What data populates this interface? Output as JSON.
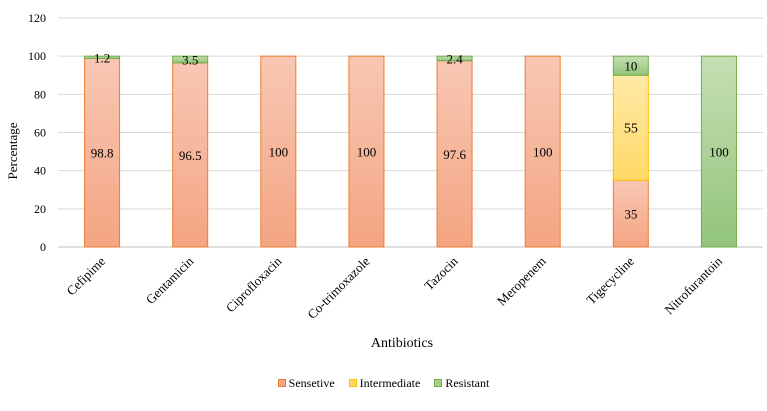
{
  "chart_data": {
    "type": "bar",
    "stacked": true,
    "xlabel": "Antibiotics",
    "ylabel": "Percentage",
    "ylim": [
      0,
      120
    ],
    "yticks": [
      0,
      20,
      40,
      60,
      80,
      100,
      120
    ],
    "grid": true,
    "legend_position": "bottom",
    "categories": [
      "Cefipime",
      "Gentamicin",
      "Ciprofloxacin",
      "Co-trimoxazole",
      "Tazocin",
      "Meropenem",
      "Tigecycline",
      "Nitrofurantoin"
    ],
    "series": [
      {
        "name": "Sensetive",
        "color": "#f4a582",
        "stroke": "#ed7d31",
        "values": [
          98.8,
          96.5,
          100,
          100,
          97.6,
          100,
          35,
          0
        ],
        "labels": [
          "98.8",
          "96.5",
          "100",
          "100",
          "97.6",
          "100",
          "35",
          ""
        ]
      },
      {
        "name": "Intermediate",
        "color": "#ffd966",
        "stroke": "#ffc000",
        "values": [
          0,
          0,
          0,
          0,
          0,
          0,
          55,
          0
        ],
        "labels": [
          "",
          "",
          "",
          "",
          "",
          "",
          "55",
          ""
        ]
      },
      {
        "name": "Resistant",
        "color": "#a9d18e",
        "stroke": "#70ad47",
        "values": [
          1.2,
          3.5,
          0,
          0,
          2.4,
          0,
          10,
          100
        ],
        "labels": [
          "1.2",
          "3.5",
          "",
          "",
          "2.4",
          "",
          "10",
          "100"
        ]
      }
    ]
  }
}
